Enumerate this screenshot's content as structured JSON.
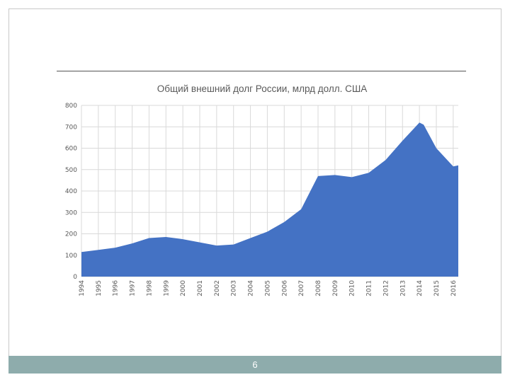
{
  "page": {
    "number": "6"
  },
  "colors": {
    "area_fill": "#4472c4",
    "grid": "#d9d9d9",
    "footer": "#8eacac"
  },
  "chart_data": {
    "type": "area",
    "title": "Общий внешний долг России, млрд долл. США",
    "xlabel": "",
    "ylabel": "",
    "ylim": [
      0,
      800
    ],
    "yticks": [
      0,
      100,
      200,
      300,
      400,
      500,
      600,
      700,
      800
    ],
    "xlim": [
      1994,
      2016.3
    ],
    "xticks": [
      1994,
      1995,
      1996,
      1997,
      1998,
      1999,
      2000,
      2001,
      2002,
      2003,
      2004,
      2005,
      2006,
      2007,
      2008,
      2009,
      2010,
      2011,
      2012,
      2013,
      2014,
      2015,
      2016
    ],
    "grid": true,
    "legend": "none",
    "series": [
      {
        "x": [
          1994,
          1995,
          1996,
          1997,
          1998,
          1999,
          2000,
          2001,
          2002,
          2003,
          2004,
          2005,
          2006,
          2007,
          2008,
          2009,
          2010,
          2011,
          2012,
          2013,
          2014,
          2014.25,
          2015,
          2016,
          2016.3
        ],
        "values": [
          115,
          125,
          135,
          155,
          180,
          185,
          175,
          160,
          145,
          150,
          180,
          210,
          255,
          315,
          470,
          475,
          465,
          485,
          545,
          635,
          720,
          710,
          600,
          515,
          520
        ]
      }
    ]
  }
}
